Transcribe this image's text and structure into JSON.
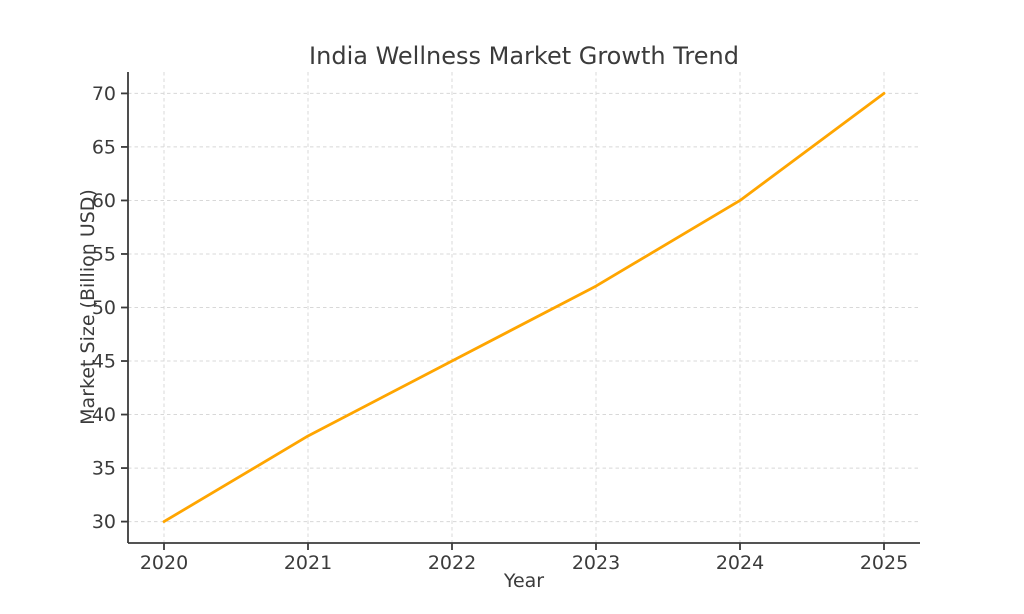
{
  "chart_data": {
    "type": "line",
    "title": "India Wellness Market Growth Trend",
    "xlabel": "Year",
    "ylabel": "Market Size (Billion USD)",
    "x": [
      2020,
      2021,
      2022,
      2023,
      2024,
      2025
    ],
    "series": [
      {
        "name": "Market Size",
        "values": [
          30,
          38,
          45,
          52,
          60,
          70
        ]
      }
    ],
    "xticks": [
      2020,
      2021,
      2022,
      2023,
      2024,
      2025
    ],
    "yticks": [
      30,
      35,
      40,
      45,
      50,
      55,
      60,
      65,
      70
    ],
    "xlim": [
      2019.75,
      2025.25
    ],
    "ylim": [
      28,
      72
    ],
    "grid": true,
    "grid_style": "dashed",
    "legend_position": "none",
    "markers": false,
    "line_color": "#FFA500",
    "grid_color": "#D8D8D8",
    "spine_color": "#3B3B3B",
    "text_color": "#3B3B3B",
    "background_color": "#FFFFFF"
  }
}
